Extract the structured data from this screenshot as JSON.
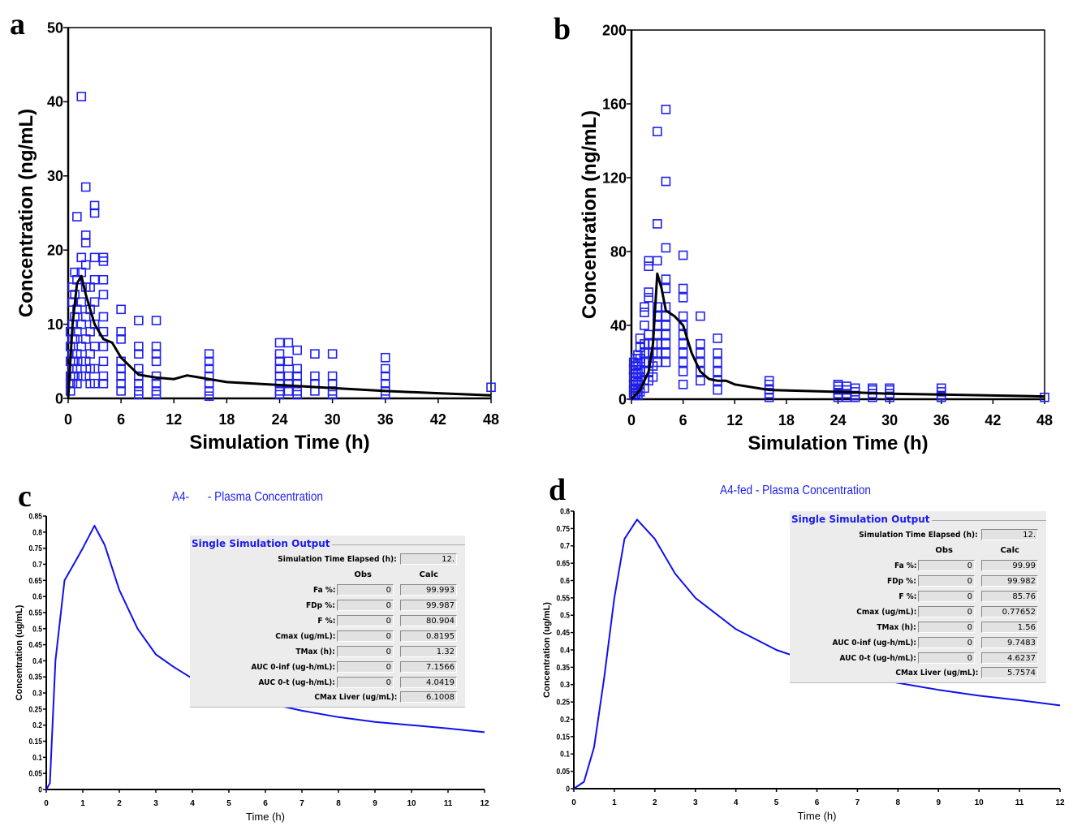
{
  "panel_letters": [
    "a",
    "b",
    "c",
    "d"
  ],
  "chart_data": [
    {
      "type": "scatter+line",
      "xlabel": "Simulation Time (h)",
      "ylabel": "Concentration (ng/mL)",
      "xlim": [
        0,
        48
      ],
      "ylim": [
        0,
        50
      ],
      "xticks": [
        0,
        6,
        12,
        18,
        24,
        30,
        36,
        42,
        48
      ],
      "yticks": [
        0,
        10,
        20,
        30,
        40,
        50
      ],
      "marker_color": "#2020ee",
      "line_color": "#000000",
      "observed": [
        [
          0.25,
          [
            1,
            2,
            3,
            5,
            7,
            9
          ]
        ],
        [
          0.5,
          [
            2,
            4,
            6,
            8,
            10,
            13,
            15
          ]
        ],
        [
          0.75,
          [
            3,
            5,
            8,
            11,
            14,
            17
          ]
        ],
        [
          1,
          [
            2,
            4,
            6,
            9,
            12,
            16,
            24.5
          ]
        ],
        [
          1.5,
          [
            3,
            5,
            7,
            10,
            13,
            17,
            19,
            40.7
          ]
        ],
        [
          2,
          [
            3,
            5,
            8,
            11,
            15,
            18,
            21,
            22,
            28.5
          ]
        ],
        [
          2.5,
          [
            2,
            4,
            6,
            9,
            12,
            15
          ]
        ],
        [
          3,
          [
            2,
            4,
            7,
            10,
            13,
            16,
            19,
            25,
            26
          ]
        ],
        [
          4,
          [
            2,
            3,
            5,
            7,
            9,
            11,
            14,
            16,
            18.5,
            19
          ]
        ],
        [
          6,
          [
            1,
            2,
            3,
            4,
            5,
            8,
            9,
            12
          ]
        ],
        [
          8,
          [
            0.5,
            1,
            2,
            3,
            4,
            6,
            7,
            10.5
          ]
        ],
        [
          10,
          [
            0.5,
            1,
            2,
            3,
            5,
            6,
            7,
            10.5
          ]
        ],
        [
          16,
          [
            0.3,
            1,
            2,
            3,
            4,
            5,
            6
          ]
        ],
        [
          24,
          [
            0.5,
            1,
            2,
            3,
            4,
            5,
            6,
            7.5
          ]
        ],
        [
          25,
          [
            1,
            2,
            3,
            5,
            7.5
          ]
        ],
        [
          26,
          [
            0.5,
            1,
            2,
            3,
            4,
            6.5
          ]
        ],
        [
          28,
          [
            1,
            2,
            3,
            6
          ]
        ],
        [
          30,
          [
            0.5,
            1,
            2,
            3,
            6
          ]
        ],
        [
          36,
          [
            0.5,
            1,
            2,
            3,
            4,
            5.5
          ]
        ],
        [
          48,
          [
            1.5
          ]
        ]
      ],
      "simulated": {
        "x": [
          0,
          0.5,
          1,
          1.5,
          2,
          3,
          4,
          5,
          6,
          8,
          10,
          12,
          13.5,
          15,
          18,
          24,
          30,
          36,
          42,
          48
        ],
        "y": [
          0,
          10,
          15.5,
          16.5,
          14,
          10,
          8,
          7.5,
          5.5,
          3.2,
          2.8,
          2.6,
          3.1,
          2.8,
          2.2,
          1.8,
          1.4,
          1.0,
          0.7,
          0.4
        ]
      }
    },
    {
      "type": "scatter+line",
      "xlabel": "Simulation Time (h)",
      "ylabel": "Concentration (ng/mL)",
      "xlim": [
        0,
        48
      ],
      "ylim": [
        0,
        200
      ],
      "xticks": [
        0,
        6,
        12,
        18,
        24,
        30,
        36,
        42,
        48
      ],
      "yticks": [
        0,
        40,
        80,
        120,
        160,
        200
      ],
      "marker_color": "#2020ee",
      "line_color": "#000000",
      "observed": [
        [
          0.25,
          [
            2,
            5,
            8,
            12,
            16,
            20
          ]
        ],
        [
          0.5,
          [
            3,
            6,
            10,
            14,
            18,
            22
          ]
        ],
        [
          0.75,
          [
            2,
            5,
            9,
            14,
            19,
            24
          ]
        ],
        [
          1,
          [
            4,
            8,
            12,
            16,
            22,
            28,
            33
          ]
        ],
        [
          1.5,
          [
            6,
            10,
            15,
            20,
            25,
            30,
            40,
            47,
            50
          ]
        ],
        [
          2,
          [
            10,
            15,
            20,
            25,
            30,
            35,
            55,
            58,
            72,
            75
          ]
        ],
        [
          2.5,
          [
            12,
            18,
            25,
            30
          ]
        ],
        [
          3,
          [
            20,
            25,
            30,
            35,
            40,
            45,
            50,
            75,
            95,
            145
          ]
        ],
        [
          4,
          [
            20,
            25,
            30,
            35,
            40,
            45,
            50,
            60,
            65,
            82,
            118,
            157
          ]
        ],
        [
          6,
          [
            8,
            15,
            20,
            25,
            30,
            35,
            40,
            45,
            55,
            60,
            78
          ]
        ],
        [
          8,
          [
            10,
            15,
            20,
            25,
            30,
            45
          ]
        ],
        [
          10,
          [
            5,
            10,
            15,
            20,
            25,
            33
          ]
        ],
        [
          16,
          [
            1,
            3,
            5,
            8,
            10
          ]
        ],
        [
          24,
          [
            1,
            3,
            5,
            7,
            8
          ]
        ],
        [
          25,
          [
            1,
            3,
            5,
            7
          ]
        ],
        [
          26,
          [
            1,
            2,
            4,
            6
          ]
        ],
        [
          28,
          [
            1,
            3,
            5,
            6
          ]
        ],
        [
          30,
          [
            1,
            3,
            5,
            6
          ]
        ],
        [
          36,
          [
            1,
            2,
            4,
            6
          ]
        ],
        [
          48,
          [
            1
          ]
        ]
      ],
      "simulated": {
        "x": [
          0,
          1,
          2,
          2.5,
          3,
          3.5,
          4,
          5,
          6,
          7,
          8,
          9,
          10,
          11,
          12,
          16,
          24,
          30,
          36,
          48
        ],
        "y": [
          0,
          5,
          15,
          30,
          68,
          60,
          48,
          45,
          40,
          25,
          15,
          11,
          10,
          10,
          8,
          5,
          4,
          3,
          2.5,
          1.5
        ]
      }
    },
    {
      "type": "line",
      "title": "A4-      - Plasma Concentration",
      "xlabel": "Time (h)",
      "ylabel": "Concentration (ug/mL)",
      "xlim": [
        0,
        12
      ],
      "ylim": [
        0,
        0.85
      ],
      "xticks": [
        0,
        1,
        2,
        3,
        4,
        5,
        6,
        7,
        8,
        9,
        10,
        11,
        12
      ],
      "yticks": [
        0,
        0.05,
        0.1,
        0.15,
        0.2,
        0.25,
        0.3,
        0.35,
        0.4,
        0.45,
        0.5,
        0.55,
        0.6,
        0.65,
        0.7,
        0.75,
        0.8,
        0.85
      ],
      "line_color": "#1010ee",
      "series": {
        "x": [
          0,
          0.1,
          0.25,
          0.5,
          0.75,
          1.0,
          1.32,
          1.6,
          2,
          2.5,
          3,
          3.5,
          4,
          5,
          6,
          7,
          8,
          9,
          10,
          11,
          12
        ],
        "y": [
          0,
          0.02,
          0.4,
          0.65,
          0.7,
          0.75,
          0.82,
          0.76,
          0.62,
          0.5,
          0.42,
          0.38,
          0.345,
          0.3,
          0.27,
          0.245,
          0.225,
          0.21,
          0.2,
          0.19,
          0.178
        ]
      },
      "output_panel": {
        "heading": "Single Simulation Output",
        "elapsed_label": "Simulation Time Elapsed (h):",
        "elapsed_value": "12.",
        "col_obs": "Obs",
        "col_calc": "Calc",
        "rows": [
          {
            "label": "Fa %:",
            "obs": "0",
            "calc": "99.993"
          },
          {
            "label": "FDp %:",
            "obs": "0",
            "calc": "99.987"
          },
          {
            "label": "F %:",
            "obs": "0",
            "calc": "80.904"
          },
          {
            "label": "Cmax (ug/mL):",
            "obs": "0",
            "calc": "0.8195"
          },
          {
            "label": "TMax (h):",
            "obs": "0",
            "calc": "1.32"
          },
          {
            "label": "AUC 0-inf (ug-h/mL):",
            "obs": "0",
            "calc": "7.1566"
          },
          {
            "label": "AUC 0-t (ug-h/mL):",
            "obs": "0",
            "calc": "4.0419"
          }
        ],
        "liver_label": "CMax Liver (ug/mL):",
        "liver_value": "6.1008"
      }
    },
    {
      "type": "line",
      "title": "A4-fed - Plasma Concentration",
      "xlabel": "Time (h)",
      "ylabel": "Concentration (ug/mL)",
      "xlim": [
        0,
        12
      ],
      "ylim": [
        0,
        0.8
      ],
      "xticks": [
        0,
        1,
        2,
        3,
        4,
        5,
        6,
        7,
        8,
        9,
        10,
        11,
        12
      ],
      "yticks": [
        0,
        0.05,
        0.1,
        0.15,
        0.2,
        0.25,
        0.3,
        0.35,
        0.4,
        0.45,
        0.5,
        0.55,
        0.6,
        0.65,
        0.7,
        0.75,
        0.8
      ],
      "line_color": "#1010ee",
      "series": {
        "x": [
          0,
          0.25,
          0.5,
          0.75,
          1,
          1.25,
          1.56,
          2,
          2.5,
          3,
          4,
          5,
          6,
          7,
          8,
          9,
          10,
          11,
          12
        ],
        "y": [
          0,
          0.02,
          0.12,
          0.32,
          0.55,
          0.72,
          0.776,
          0.72,
          0.62,
          0.55,
          0.46,
          0.4,
          0.36,
          0.33,
          0.305,
          0.285,
          0.268,
          0.255,
          0.24
        ]
      },
      "output_panel": {
        "heading": "Single Simulation Output",
        "elapsed_label": "Simulation Time Elapsed (h):",
        "elapsed_value": "12.",
        "col_obs": "Obs",
        "col_calc": "Calc",
        "rows": [
          {
            "label": "Fa %:",
            "obs": "0",
            "calc": "99.99"
          },
          {
            "label": "FDp %:",
            "obs": "0",
            "calc": "99.982"
          },
          {
            "label": "F %:",
            "obs": "0",
            "calc": "85.76"
          },
          {
            "label": "Cmax (ug/mL):",
            "obs": "0",
            "calc": "0.77652"
          },
          {
            "label": "TMax (h):",
            "obs": "0",
            "calc": "1.56"
          },
          {
            "label": "AUC 0-inf (ug-h/mL):",
            "obs": "0",
            "calc": "9.7483"
          },
          {
            "label": "AUC 0-t (ug-h/mL):",
            "obs": "0",
            "calc": "4.6237"
          }
        ],
        "liver_label": "CMax Liver (ug/mL):",
        "liver_value": "5.7574"
      }
    }
  ]
}
